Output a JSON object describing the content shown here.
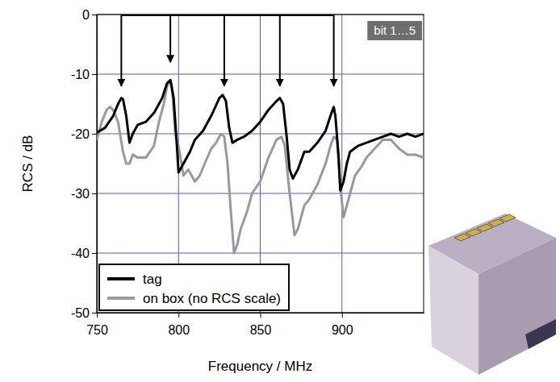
{
  "chart_data": {
    "type": "line",
    "x_label": "Frequency / MHz",
    "y_label": "RCS / dB",
    "xlim": [
      750,
      950
    ],
    "xticks": [
      750,
      800,
      850,
      900
    ],
    "ylim": [
      -50,
      0
    ],
    "yticks": [
      0,
      -10,
      -20,
      -30,
      -40,
      -50
    ],
    "grid": true,
    "legend": "lower left",
    "annotations": [
      {
        "text": "bit 1…5",
        "arrow_x": [
          765,
          795,
          828,
          862,
          895
        ],
        "arrow_y": [
          -12,
          -8,
          -12,
          -12,
          -12
        ]
      }
    ],
    "series": [
      {
        "name": "tag",
        "color": "#000000",
        "x": [
          750,
          755,
          760,
          763,
          765,
          766,
          768,
          770,
          772,
          775,
          780,
          785,
          790,
          793,
          795,
          797,
          799,
          800,
          803,
          807,
          810,
          815,
          820,
          825,
          827,
          829,
          831,
          833,
          836,
          840,
          845,
          850,
          855,
          860,
          862,
          864,
          866,
          868,
          870,
          873,
          877,
          880,
          885,
          890,
          893,
          895,
          896,
          898,
          899,
          901,
          903,
          905,
          910,
          915,
          920,
          925,
          930,
          935,
          940,
          945,
          950
        ],
        "values": [
          -19.8,
          -19,
          -17,
          -15,
          -14,
          -14.2,
          -17,
          -21.5,
          -20,
          -18.5,
          -18,
          -16.5,
          -14,
          -11.5,
          -11,
          -14,
          -22,
          -26.5,
          -25,
          -23,
          -21,
          -19.5,
          -17,
          -14,
          -13.5,
          -14.5,
          -19,
          -21.5,
          -21,
          -20.5,
          -19.5,
          -18,
          -16,
          -14.5,
          -14,
          -15,
          -20,
          -26,
          -27.5,
          -26,
          -23,
          -23,
          -21.5,
          -19.5,
          -17,
          -15.5,
          -17,
          -24,
          -29.5,
          -28,
          -25,
          -23,
          -22,
          -21.5,
          -21,
          -20.5,
          -20,
          -20.5,
          -20,
          -20.5,
          -20
        ]
      },
      {
        "name": "on box (no RCS scale)",
        "color": "#999999",
        "x": [
          750,
          753,
          756,
          758,
          760,
          763,
          766,
          768,
          770,
          772,
          775,
          780,
          785,
          788,
          791,
          793,
          795,
          796,
          798,
          800,
          803,
          806,
          810,
          813,
          816,
          820,
          823,
          826,
          828,
          830,
          832,
          834,
          836,
          838,
          842,
          845,
          850,
          855,
          860,
          863,
          865,
          868,
          871,
          873,
          877,
          880,
          885,
          890,
          893,
          895,
          897,
          899,
          901,
          903,
          905,
          908,
          912,
          915,
          920,
          925,
          930,
          935,
          940,
          945,
          950
        ],
        "values": [
          -21,
          -18,
          -16,
          -15.5,
          -16,
          -18,
          -23,
          -25,
          -25,
          -23.5,
          -24,
          -24,
          -22,
          -18,
          -15,
          -12,
          -11,
          -12,
          -20,
          -22,
          -27,
          -26,
          -28,
          -27,
          -25,
          -22.5,
          -21.5,
          -20,
          -20.5,
          -25,
          -33,
          -40,
          -38.5,
          -36,
          -33,
          -30,
          -28,
          -24,
          -21,
          -20.5,
          -22,
          -30,
          -37,
          -36,
          -32,
          -31,
          -28.5,
          -25,
          -22,
          -20.5,
          -21,
          -29,
          -34,
          -32,
          -30,
          -27,
          -25.5,
          -24,
          -22.5,
          -21,
          -21,
          -22.5,
          -23.5,
          -23.5,
          -24
        ]
      }
    ]
  }
}
